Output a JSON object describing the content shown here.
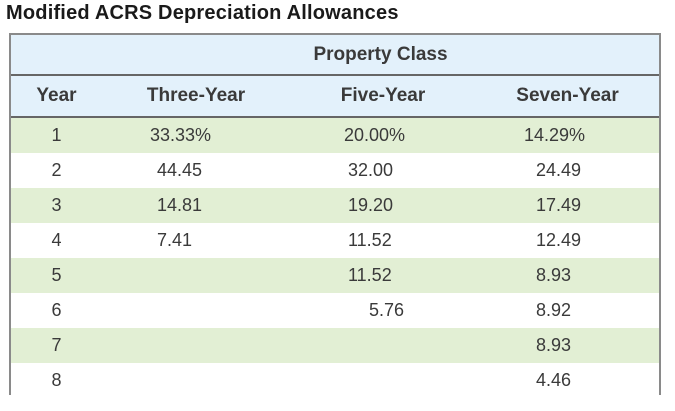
{
  "title": "Modified ACRS Depreciation Allowances",
  "table": {
    "group_header": "Property Class",
    "columns": [
      "Year",
      "Three-Year",
      "Five-Year",
      "Seven-Year"
    ],
    "rows": [
      {
        "year": "1",
        "three": "33.33%",
        "five": "20.00%",
        "seven": "14.29%"
      },
      {
        "year": "2",
        "three": "44.45",
        "five": "32.00",
        "seven": "24.49"
      },
      {
        "year": "3",
        "three": "14.81",
        "five": "19.20",
        "seven": "17.49"
      },
      {
        "year": "4",
        "three": "7.41",
        "five": "11.52",
        "seven": "12.49"
      },
      {
        "year": "5",
        "three": "",
        "five": "11.52",
        "seven": "8.93"
      },
      {
        "year": "6",
        "three": "",
        "five": "5.76",
        "seven": "8.92"
      },
      {
        "year": "7",
        "three": "",
        "five": "",
        "seven": "8.93"
      },
      {
        "year": "8",
        "three": "",
        "five": "",
        "seven": "4.46"
      }
    ]
  },
  "colors": {
    "header_bg": "#e3f1fb",
    "stripe_bg": "#e2efd4",
    "border": "#8a8a8a"
  }
}
